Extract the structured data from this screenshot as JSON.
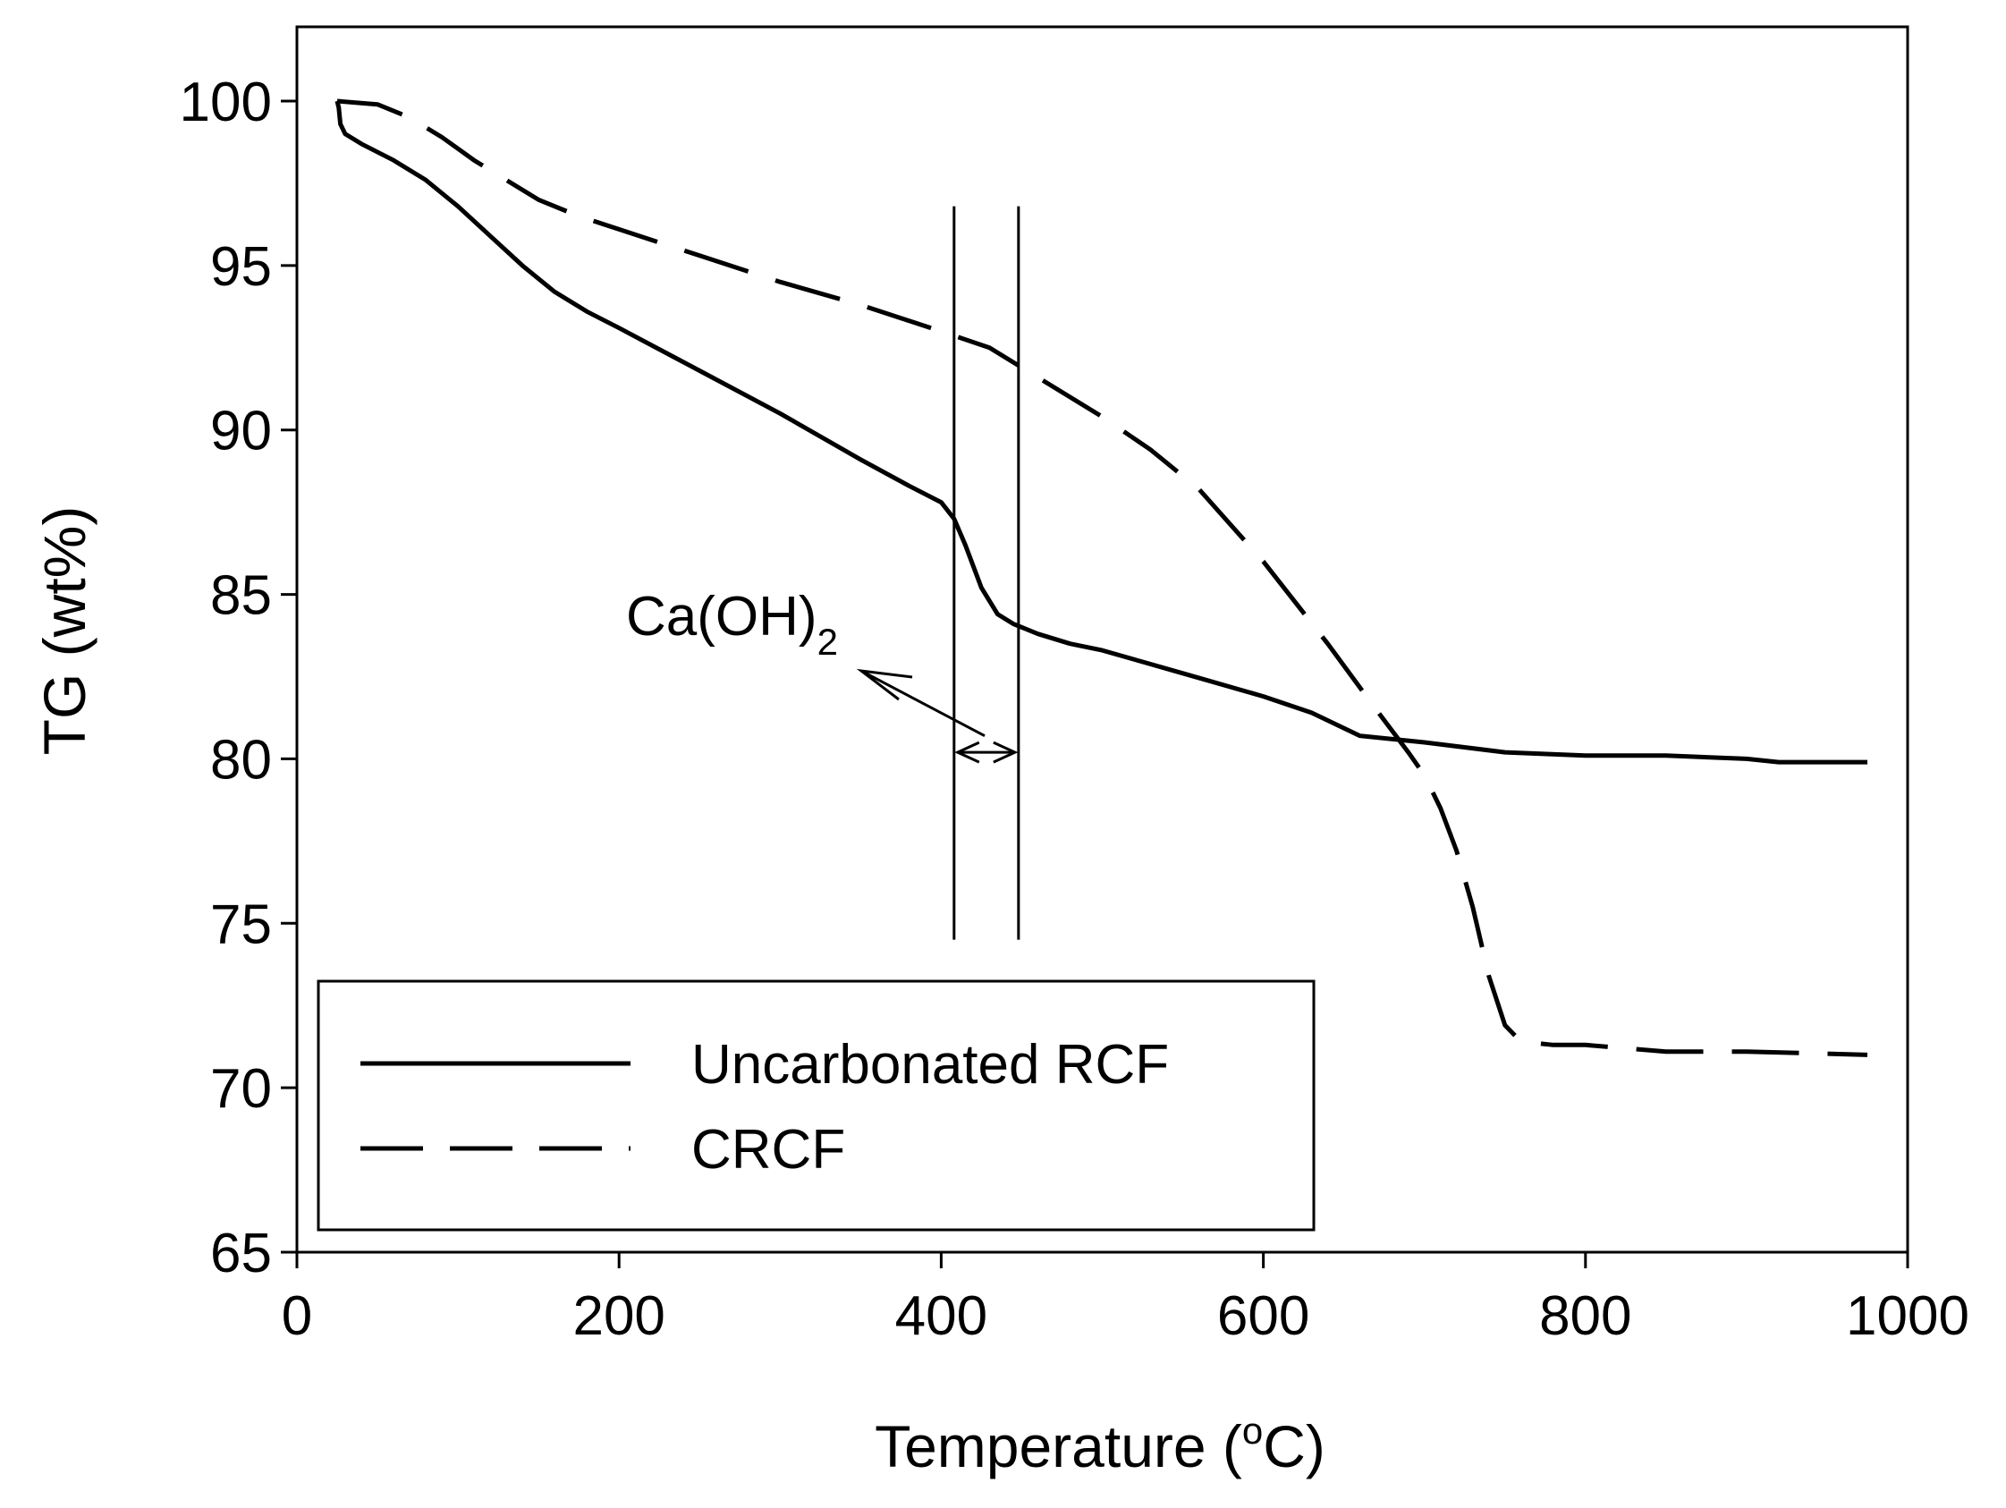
{
  "chart_data": {
    "type": "line",
    "title": "",
    "xlabel": {
      "main": "Temperature (",
      "sup": "o",
      "unit": "C)"
    },
    "ylabel": "TG (wt%)",
    "xlim": [
      0,
      1000
    ],
    "ylim": [
      65,
      102
    ],
    "xticks": [
      0,
      200,
      400,
      600,
      800,
      1000
    ],
    "yticks": [
      65,
      70,
      75,
      80,
      85,
      90,
      95,
      100
    ],
    "xtick_labels": [
      "0",
      "200",
      "400",
      "600",
      "800",
      "1000"
    ],
    "ytick_labels": [
      "65",
      "70",
      "75",
      "80",
      "85",
      "90",
      "95",
      "100"
    ],
    "grid": false,
    "legend_position": "bottom-left",
    "series": [
      {
        "name": "Uncarbonated RCF",
        "style": "solid",
        "x": [
          25,
          26,
          27,
          30,
          40,
          60,
          80,
          100,
          120,
          140,
          160,
          180,
          200,
          250,
          300,
          350,
          380,
          400,
          408,
          415,
          425,
          435,
          445,
          460,
          480,
          500,
          550,
          600,
          630,
          660,
          700,
          750,
          800,
          850,
          900,
          920,
          975
        ],
        "y": [
          100,
          99.8,
          99.3,
          99.0,
          98.7,
          98.2,
          97.6,
          96.8,
          95.9,
          95.0,
          94.2,
          93.6,
          93.1,
          91.8,
          90.5,
          89.1,
          88.3,
          87.8,
          87.3,
          86.5,
          85.2,
          84.4,
          84.1,
          83.8,
          83.5,
          83.3,
          82.6,
          81.9,
          81.4,
          80.7,
          80.5,
          80.2,
          80.1,
          80.1,
          80.0,
          79.9,
          79.9
        ]
      },
      {
        "name": "CRCF",
        "style": "dashed",
        "x": [
          25,
          50,
          70,
          90,
          110,
          130,
          150,
          175,
          200,
          250,
          300,
          350,
          400,
          430,
          460,
          500,
          530,
          560,
          600,
          640,
          670,
          690,
          700,
          710,
          720,
          730,
          740,
          750,
          760,
          780,
          800,
          850,
          900,
          975
        ],
        "y": [
          100,
          99.9,
          99.5,
          98.9,
          98.2,
          97.6,
          97.0,
          96.5,
          96.1,
          95.3,
          94.5,
          93.8,
          93.0,
          92.5,
          91.6,
          90.4,
          89.4,
          88.2,
          86.0,
          83.5,
          81.5,
          80.2,
          79.5,
          78.5,
          77.2,
          75.5,
          73.4,
          71.9,
          71.4,
          71.3,
          71.3,
          71.1,
          71.1,
          71.0
        ]
      }
    ],
    "annotations": {
      "ca_oh2": {
        "text": "Ca(OH)",
        "subscript": "2"
      },
      "region_x": [
        408,
        448
      ],
      "region_y": [
        74.5,
        96.8
      ],
      "double_arrow_y": 80.2
    }
  }
}
